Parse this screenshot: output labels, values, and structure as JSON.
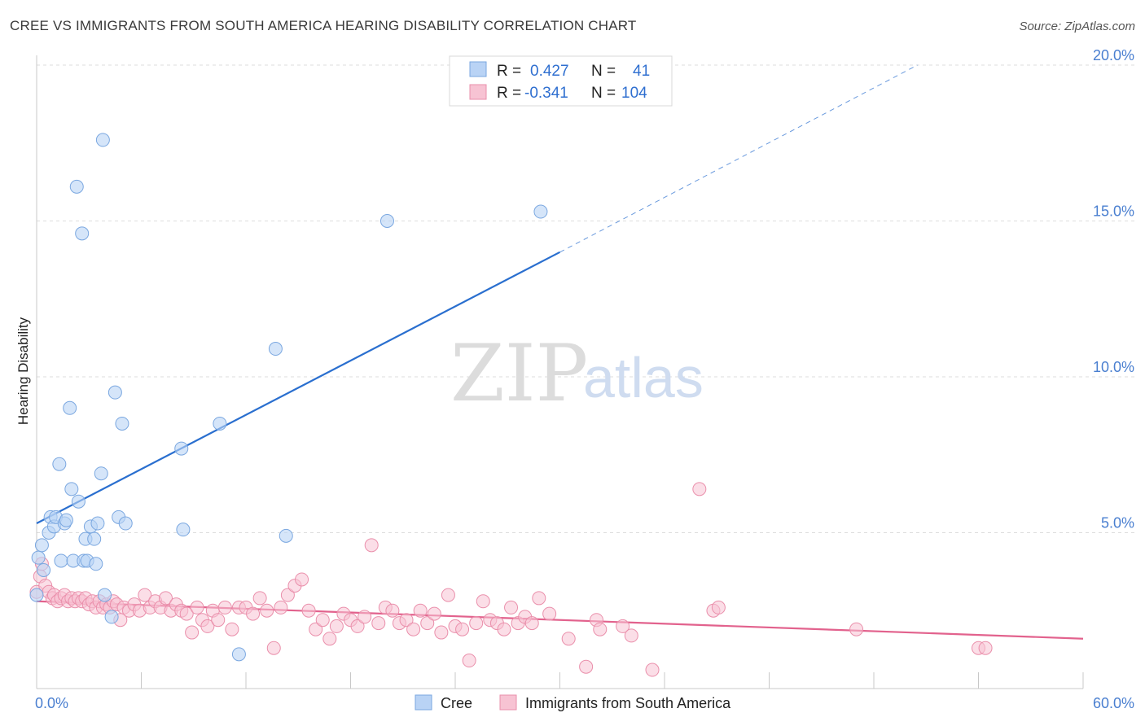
{
  "title": "CREE VS IMMIGRANTS FROM SOUTH AMERICA HEARING DISABILITY CORRELATION CHART",
  "source": "Source: ZipAtlas.com",
  "watermark": {
    "zip": "ZIP",
    "atlas": "atlas"
  },
  "legend": {
    "rows": [
      {
        "r_label": "R =",
        "r_value": "0.427",
        "n_label": "N =",
        "n_value": "41"
      },
      {
        "r_label": "R =",
        "r_value": "-0.341",
        "n_label": "N =",
        "n_value": "104"
      }
    ]
  },
  "bottom_legend": {
    "cree": "Cree",
    "immigrants": "Immigrants from South America"
  },
  "colors": {
    "cree_fill": "#b9d3f5",
    "cree_stroke": "#7aa7e0",
    "cree_line": "#2a6fcf",
    "imm_fill": "#f7c3d3",
    "imm_stroke": "#ea8fab",
    "imm_line": "#e2628d",
    "grid": "#dddddd",
    "tick_label": "#4a7fd0"
  },
  "chart_data": {
    "type": "scatter",
    "title": "CREE VS IMMIGRANTS FROM SOUTH AMERICA HEARING DISABILITY CORRELATION CHART",
    "xlabel": "",
    "ylabel": "Hearing Disability",
    "xlim": [
      0,
      60
    ],
    "ylim": [
      0,
      20
    ],
    "x_tick_labels": [
      "0.0%",
      "60.0%"
    ],
    "y_tick_labels": [
      "5.0%",
      "10.0%",
      "15.0%",
      "20.0%"
    ],
    "y_ticks": [
      5,
      10,
      15,
      20
    ],
    "series": [
      {
        "name": "Cree",
        "points": [
          [
            0.0,
            3.0
          ],
          [
            0.1,
            4.2
          ],
          [
            0.3,
            4.6
          ],
          [
            0.4,
            3.8
          ],
          [
            0.7,
            5.0
          ],
          [
            0.8,
            5.5
          ],
          [
            1.0,
            5.2
          ],
          [
            1.1,
            5.5
          ],
          [
            1.3,
            7.2
          ],
          [
            1.4,
            4.1
          ],
          [
            1.6,
            5.3
          ],
          [
            1.7,
            5.4
          ],
          [
            1.9,
            9.0
          ],
          [
            2.0,
            6.4
          ],
          [
            2.1,
            4.1
          ],
          [
            2.3,
            16.1
          ],
          [
            2.4,
            6.0
          ],
          [
            2.6,
            14.6
          ],
          [
            2.7,
            4.1
          ],
          [
            2.8,
            4.8
          ],
          [
            2.9,
            4.1
          ],
          [
            3.1,
            5.2
          ],
          [
            3.3,
            4.8
          ],
          [
            3.4,
            4.0
          ],
          [
            3.5,
            5.3
          ],
          [
            3.7,
            6.9
          ],
          [
            3.8,
            17.6
          ],
          [
            3.9,
            3.0
          ],
          [
            4.3,
            2.3
          ],
          [
            4.5,
            9.5
          ],
          [
            4.7,
            5.5
          ],
          [
            4.9,
            8.5
          ],
          [
            5.1,
            5.3
          ],
          [
            8.3,
            7.7
          ],
          [
            8.4,
            5.1
          ],
          [
            10.5,
            8.5
          ],
          [
            11.6,
            1.1
          ],
          [
            13.7,
            10.9
          ],
          [
            14.3,
            4.9
          ],
          [
            20.1,
            15.0
          ],
          [
            28.9,
            15.3
          ]
        ]
      },
      {
        "name": "Immigrants from South America",
        "points": [
          [
            0.0,
            3.1
          ],
          [
            0.2,
            3.6
          ],
          [
            0.3,
            4.0
          ],
          [
            0.5,
            3.3
          ],
          [
            0.7,
            3.1
          ],
          [
            0.9,
            2.9
          ],
          [
            1.0,
            3.0
          ],
          [
            1.2,
            2.8
          ],
          [
            1.4,
            2.9
          ],
          [
            1.6,
            3.0
          ],
          [
            1.8,
            2.8
          ],
          [
            2.0,
            2.9
          ],
          [
            2.2,
            2.8
          ],
          [
            2.4,
            2.9
          ],
          [
            2.6,
            2.8
          ],
          [
            2.8,
            2.9
          ],
          [
            3.0,
            2.7
          ],
          [
            3.2,
            2.8
          ],
          [
            3.4,
            2.6
          ],
          [
            3.6,
            2.8
          ],
          [
            3.8,
            2.6
          ],
          [
            4.0,
            2.7
          ],
          [
            4.2,
            2.6
          ],
          [
            4.4,
            2.8
          ],
          [
            4.6,
            2.7
          ],
          [
            4.8,
            2.2
          ],
          [
            5.0,
            2.6
          ],
          [
            5.3,
            2.5
          ],
          [
            5.6,
            2.7
          ],
          [
            5.9,
            2.5
          ],
          [
            6.2,
            3.0
          ],
          [
            6.5,
            2.6
          ],
          [
            6.8,
            2.8
          ],
          [
            7.1,
            2.6
          ],
          [
            7.4,
            2.9
          ],
          [
            7.7,
            2.5
          ],
          [
            8.0,
            2.7
          ],
          [
            8.3,
            2.5
          ],
          [
            8.6,
            2.4
          ],
          [
            8.9,
            1.8
          ],
          [
            9.2,
            2.6
          ],
          [
            9.5,
            2.2
          ],
          [
            9.8,
            2.0
          ],
          [
            10.1,
            2.5
          ],
          [
            10.4,
            2.2
          ],
          [
            10.8,
            2.6
          ],
          [
            11.2,
            1.9
          ],
          [
            11.6,
            2.6
          ],
          [
            12.0,
            2.6
          ],
          [
            12.4,
            2.4
          ],
          [
            12.8,
            2.9
          ],
          [
            13.2,
            2.5
          ],
          [
            13.6,
            1.3
          ],
          [
            14.0,
            2.6
          ],
          [
            14.4,
            3.0
          ],
          [
            14.8,
            3.3
          ],
          [
            15.2,
            3.5
          ],
          [
            15.6,
            2.5
          ],
          [
            16.0,
            1.9
          ],
          [
            16.4,
            2.2
          ],
          [
            16.8,
            1.6
          ],
          [
            17.2,
            2.0
          ],
          [
            17.6,
            2.4
          ],
          [
            18.0,
            2.2
          ],
          [
            18.4,
            2.0
          ],
          [
            18.8,
            2.3
          ],
          [
            19.2,
            4.6
          ],
          [
            19.6,
            2.1
          ],
          [
            20.0,
            2.6
          ],
          [
            20.4,
            2.5
          ],
          [
            20.8,
            2.1
          ],
          [
            21.2,
            2.2
          ],
          [
            21.6,
            1.9
          ],
          [
            22.0,
            2.5
          ],
          [
            22.4,
            2.1
          ],
          [
            22.8,
            2.4
          ],
          [
            23.2,
            1.8
          ],
          [
            23.6,
            3.0
          ],
          [
            24.0,
            2.0
          ],
          [
            24.4,
            1.9
          ],
          [
            24.8,
            0.9
          ],
          [
            25.2,
            2.1
          ],
          [
            25.6,
            2.8
          ],
          [
            26.0,
            2.2
          ],
          [
            26.4,
            2.1
          ],
          [
            26.8,
            1.9
          ],
          [
            27.2,
            2.6
          ],
          [
            27.6,
            2.1
          ],
          [
            28.0,
            2.3
          ],
          [
            28.4,
            2.1
          ],
          [
            28.8,
            2.9
          ],
          [
            29.4,
            2.4
          ],
          [
            30.5,
            1.6
          ],
          [
            31.5,
            0.7
          ],
          [
            32.1,
            2.2
          ],
          [
            32.3,
            1.9
          ],
          [
            33.6,
            2.0
          ],
          [
            34.1,
            1.7
          ],
          [
            35.3,
            0.6
          ],
          [
            38.0,
            6.4
          ],
          [
            38.8,
            2.5
          ],
          [
            39.1,
            2.6
          ],
          [
            47.0,
            1.9
          ],
          [
            54.0,
            1.3
          ],
          [
            54.4,
            1.3
          ]
        ]
      }
    ],
    "trendlines": [
      {
        "series": "Cree",
        "x": [
          0,
          30
        ],
        "y": [
          5.3,
          14.0
        ],
        "extends_dashed_to": [
          50.5,
          20.0
        ]
      },
      {
        "series": "Immigrants from South America",
        "x": [
          0,
          60
        ],
        "y": [
          2.8,
          1.6
        ]
      }
    ],
    "grid": true
  }
}
